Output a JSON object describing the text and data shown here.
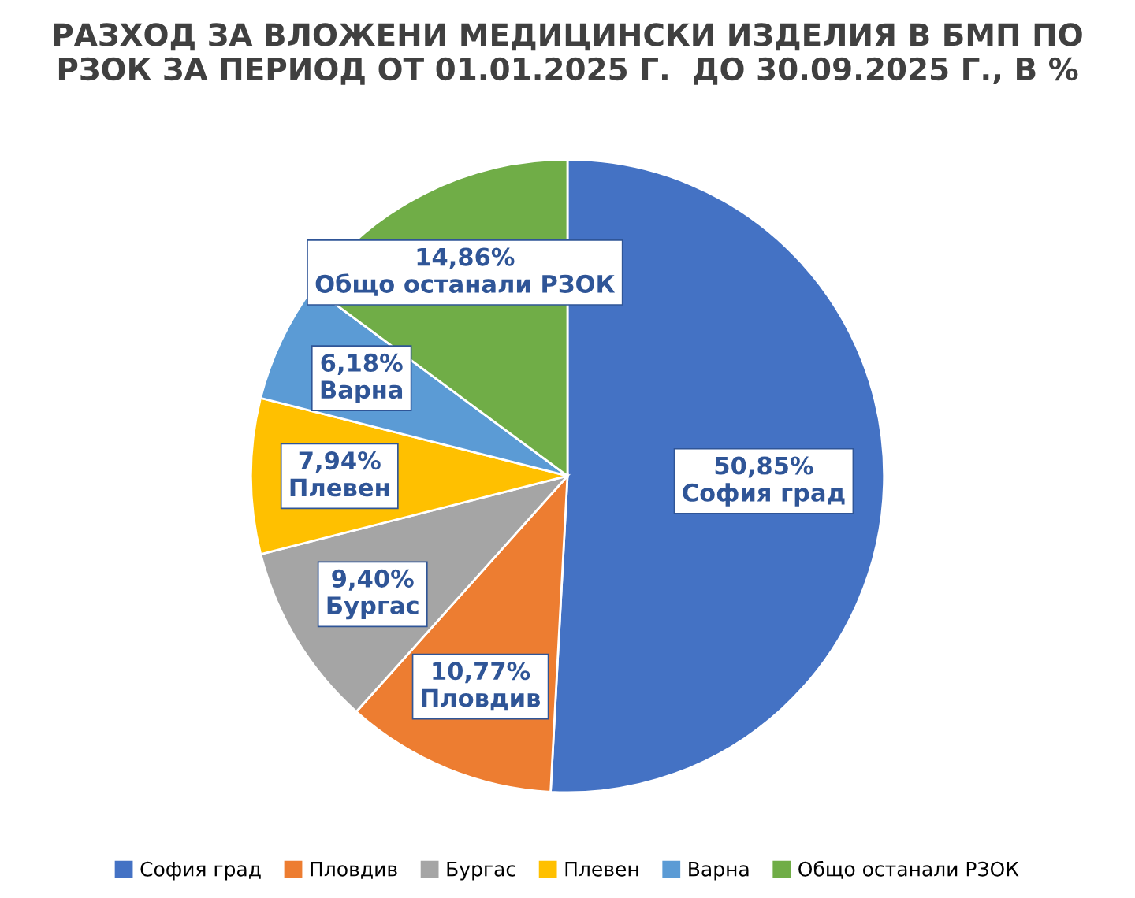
{
  "chart_data": {
    "type": "pie",
    "title": "РАЗХОД ЗА ВЛОЖЕНИ МЕДИЦИНСКИ ИЗДЕЛИЯ В БМП ПО РЗОК ЗА ПЕРИОД ОТ 01.01.2025 Г.  ДО 30.09.2025 Г., В %",
    "categories": [
      "София град",
      "Пловдив",
      "Бургас",
      "Плевен",
      "Варна",
      "Общо останали РЗОК"
    ],
    "values": [
      50.85,
      10.77,
      9.4,
      7.94,
      6.18,
      14.86
    ],
    "colors": [
      "#4472c4",
      "#ed7d31",
      "#a5a5a5",
      "#ffc000",
      "#5b9bd5",
      "#70ad47"
    ],
    "value_labels": [
      "50,85%",
      "10,77%",
      "9,40%",
      "7,94%",
      "6,18%",
      "14,86%"
    ],
    "legend": "bottom"
  }
}
